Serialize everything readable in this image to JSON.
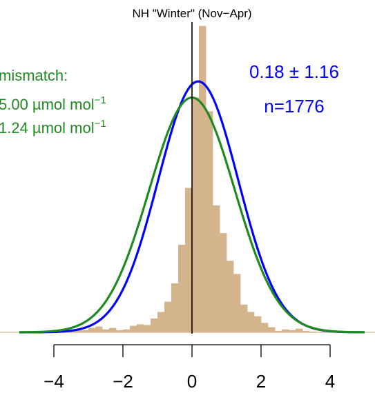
{
  "chart_data": {
    "type": "bar",
    "title": "NH \"Winter\" (Nov−Apr)",
    "xlabel": "",
    "ylabel": "",
    "xlim": [
      -5,
      5
    ],
    "ylim": [
      0,
      0.43
    ],
    "x_tick_values": [
      -4,
      -2,
      0,
      2,
      4
    ],
    "x_tick_labels": [
      "−4",
      "−2",
      "0",
      "2",
      "4"
    ],
    "bin_width": 0.2,
    "bins": [
      {
        "x": -4.1,
        "density": 0.002
      },
      {
        "x": -3.9,
        "density": 0.001
      },
      {
        "x": -3.7,
        "density": 0.002
      },
      {
        "x": -3.5,
        "density": 0.003
      },
      {
        "x": -3.3,
        "density": 0.004
      },
      {
        "x": -3.1,
        "density": 0.003
      },
      {
        "x": -2.9,
        "density": 0.006
      },
      {
        "x": -2.7,
        "density": 0.008
      },
      {
        "x": -2.5,
        "density": 0.004
      },
      {
        "x": -2.3,
        "density": 0.006
      },
      {
        "x": -2.1,
        "density": 0.003
      },
      {
        "x": -1.9,
        "density": 0.004
      },
      {
        "x": -1.7,
        "density": 0.009
      },
      {
        "x": -1.5,
        "density": 0.011
      },
      {
        "x": -1.3,
        "density": 0.01
      },
      {
        "x": -1.1,
        "density": 0.019
      },
      {
        "x": -0.9,
        "density": 0.028
      },
      {
        "x": -0.7,
        "density": 0.042
      },
      {
        "x": -0.5,
        "density": 0.067
      },
      {
        "x": -0.3,
        "density": 0.12
      },
      {
        "x": -0.1,
        "density": 0.198
      },
      {
        "x": 0.1,
        "density": 0.322
      },
      {
        "x": 0.3,
        "density": 0.42
      },
      {
        "x": 0.5,
        "density": 0.303
      },
      {
        "x": 0.7,
        "density": 0.174
      },
      {
        "x": 0.9,
        "density": 0.136
      },
      {
        "x": 1.1,
        "density": 0.098
      },
      {
        "x": 1.3,
        "density": 0.08
      },
      {
        "x": 1.5,
        "density": 0.038
      },
      {
        "x": 1.7,
        "density": 0.028
      },
      {
        "x": 1.9,
        "density": 0.022
      },
      {
        "x": 2.1,
        "density": 0.013
      },
      {
        "x": 2.3,
        "density": 0.007
      },
      {
        "x": 2.5,
        "density": 0.002
      },
      {
        "x": 2.7,
        "density": 0.004
      },
      {
        "x": 2.9,
        "density": 0.003
      },
      {
        "x": 3.1,
        "density": 0.005
      },
      {
        "x": 3.3,
        "density": 0.002
      },
      {
        "x": 3.5,
        "density": 0.001
      }
    ],
    "curves": [
      {
        "mean": 0.18,
        "sd": 1.16,
        "color": "#0000ff"
      },
      {
        "mean": 0.0,
        "sd": 1.24,
        "color": "#1f8a1f"
      }
    ],
    "annotations": {
      "stats_line1": "0.18 ± 1.16",
      "stats_line2": "n=1776",
      "mismatch_line1": "mismatch:",
      "mismatch_line2": "5.00 µmol mol",
      "mismatch_line3": "1.24 µmol mol",
      "unit_exponent": "−1"
    },
    "colors": {
      "histogram": "#d4b48c",
      "zero_line": "#000000",
      "stats_text": "#0000ff",
      "mismatch_text": "#1f8a1f"
    }
  }
}
